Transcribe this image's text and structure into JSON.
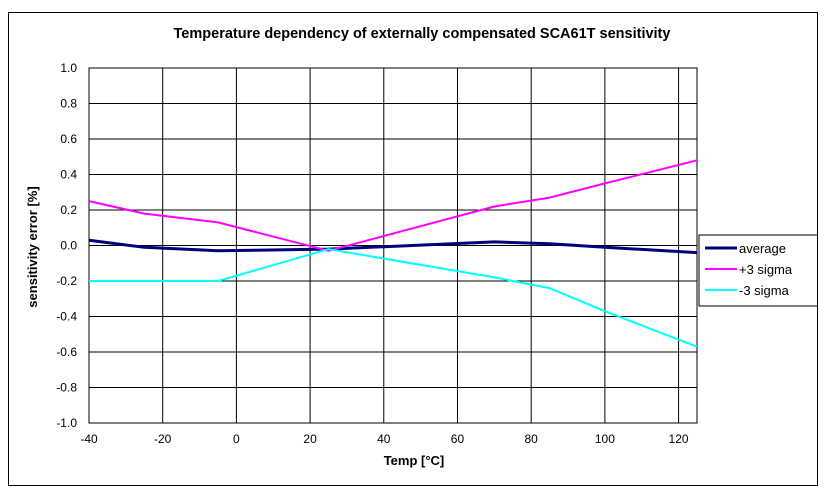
{
  "chart_data": {
    "type": "line",
    "title": "Temperature dependency of externally compensated SCA61T sensitivity",
    "xlabel": "Temp [°C]",
    "ylabel": "sensitivity error [%]",
    "xlim": [
      -40,
      125
    ],
    "ylim": [
      -1.0,
      1.0
    ],
    "x_ticks": [
      "-40",
      "-20",
      "0",
      "20",
      "40",
      "60",
      "80",
      "100",
      "120"
    ],
    "y_ticks": [
      "1.0",
      "0.8",
      "0.6",
      "0.4",
      "0.2",
      "0.0",
      "-0.2",
      "-0.4",
      "-0.6",
      "-0.8",
      "-1.0"
    ],
    "x_tick_values": [
      -40,
      -20,
      0,
      20,
      40,
      60,
      80,
      100,
      120
    ],
    "y_tick_values": [
      1.0,
      0.8,
      0.6,
      0.4,
      0.2,
      0.0,
      -0.2,
      -0.4,
      -0.6,
      -0.8,
      -1.0
    ],
    "x_grid_values": [
      -40,
      -20,
      0,
      20,
      40,
      60,
      80,
      100,
      120,
      125
    ],
    "grid": true,
    "legend_position": "right",
    "series": [
      {
        "name": "average",
        "color": "#000080",
        "x": [
          -40,
          -25,
          -5,
          25,
          70,
          85,
          100,
          125
        ],
        "y": [
          0.03,
          -0.01,
          -0.03,
          -0.02,
          0.02,
          0.01,
          -0.01,
          -0.04
        ]
      },
      {
        "name": "+3 sigma",
        "color": "#FF00FF",
        "x": [
          -40,
          -25,
          -5,
          25,
          70,
          85,
          100,
          125
        ],
        "y": [
          0.25,
          0.18,
          0.13,
          -0.03,
          0.22,
          0.27,
          0.35,
          0.48
        ]
      },
      {
        "name": "-3 sigma",
        "color": "#00FFFF",
        "x": [
          -40,
          -25,
          -5,
          25,
          70,
          85,
          100,
          125
        ],
        "y": [
          -0.2,
          -0.2,
          -0.2,
          -0.02,
          -0.18,
          -0.24,
          -0.37,
          -0.57
        ]
      }
    ]
  }
}
